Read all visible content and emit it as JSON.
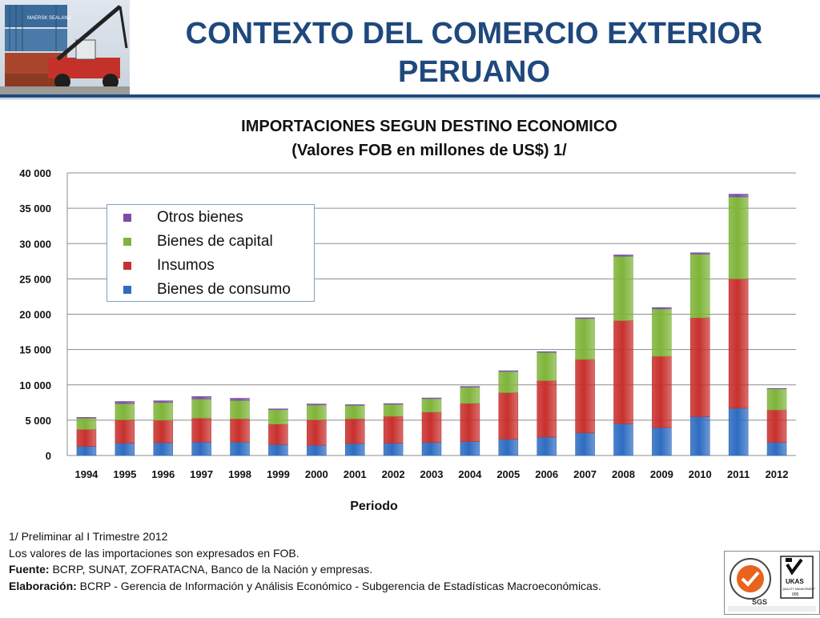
{
  "header": {
    "title_line1": "CONTEXTO DEL COMERCIO EXTERIOR",
    "title_line2": "PERUANO",
    "photo_icon": "container-crane-photo",
    "container_brand": "MAERSK SEALAND"
  },
  "chart_data": {
    "type": "bar",
    "stacked": true,
    "title_line1": "IMPORTACIONES SEGUN DESTINO ECONOMICO",
    "title_line2": "(Valores FOB en millones de US$) 1/",
    "xlabel": "Periodo",
    "ylabel": "",
    "ylim": [
      0,
      40000
    ],
    "yticks": [
      0,
      5000,
      10000,
      15000,
      20000,
      25000,
      30000,
      35000,
      40000
    ],
    "ytick_labels": [
      "0",
      "5 000",
      "10 000",
      "15 000",
      "20 000",
      "25 000",
      "30 000",
      "35 000",
      "40 000"
    ],
    "grid": true,
    "legend_position": "upper-left",
    "categories": [
      "1994",
      "1995",
      "1996",
      "1997",
      "1998",
      "1999",
      "2000",
      "2001",
      "2002",
      "2003",
      "2004",
      "2005",
      "2006",
      "2007",
      "2008",
      "2009",
      "2010",
      "2011",
      "2012"
    ],
    "series": [
      {
        "name": "Bienes de consumo",
        "color": "#2e6cc1",
        "values": [
          1300,
          1750,
          1800,
          1900,
          1900,
          1550,
          1450,
          1700,
          1750,
          1850,
          1980,
          2300,
          2600,
          3200,
          4500,
          3950,
          5500,
          6700,
          1850
        ]
      },
      {
        "name": "Insumos",
        "color": "#c8302d",
        "values": [
          2400,
          3300,
          3200,
          3400,
          3300,
          2900,
          3600,
          3500,
          3800,
          4300,
          5400,
          6600,
          8000,
          10400,
          14600,
          10100,
          14000,
          18300,
          4600
        ]
      },
      {
        "name": "Bienes de capital",
        "color": "#7fb43a",
        "values": [
          1600,
          2300,
          2500,
          2700,
          2600,
          2050,
          2100,
          1900,
          1700,
          1900,
          2300,
          3000,
          4000,
          5800,
          9100,
          6700,
          9000,
          11600,
          3000
        ]
      },
      {
        "name": "Otros bienes",
        "color": "#7b4fa6",
        "values": [
          100,
          300,
          250,
          350,
          300,
          100,
          150,
          100,
          100,
          100,
          100,
          100,
          100,
          100,
          200,
          200,
          200,
          400,
          50
        ]
      }
    ]
  },
  "footnotes": {
    "note1": "1/  Preliminar al I Trimestre 2012",
    "note2": "Los valores de las importaciones son expresados en FOB.",
    "source_label": "Fuente:",
    "source_text": "  BCRP, SUNAT, ZOFRATACNA, Banco de la Nación y empresas.",
    "elab_label": "Elaboración:",
    "elab_text": "  BCRP - Gerencia de Información y Análisis Económico  -  Subgerencia de Estadísticas Macroeconómicas."
  },
  "certification": {
    "left_logo": "sgs-certification-seal",
    "right_logo": "ukas-quality-management-seal",
    "sgs_text": "SGS",
    "ukas_text": "UKAS",
    "ukas_sub": "QUALITY MANAGEMENT",
    "ukas_code": "005"
  }
}
